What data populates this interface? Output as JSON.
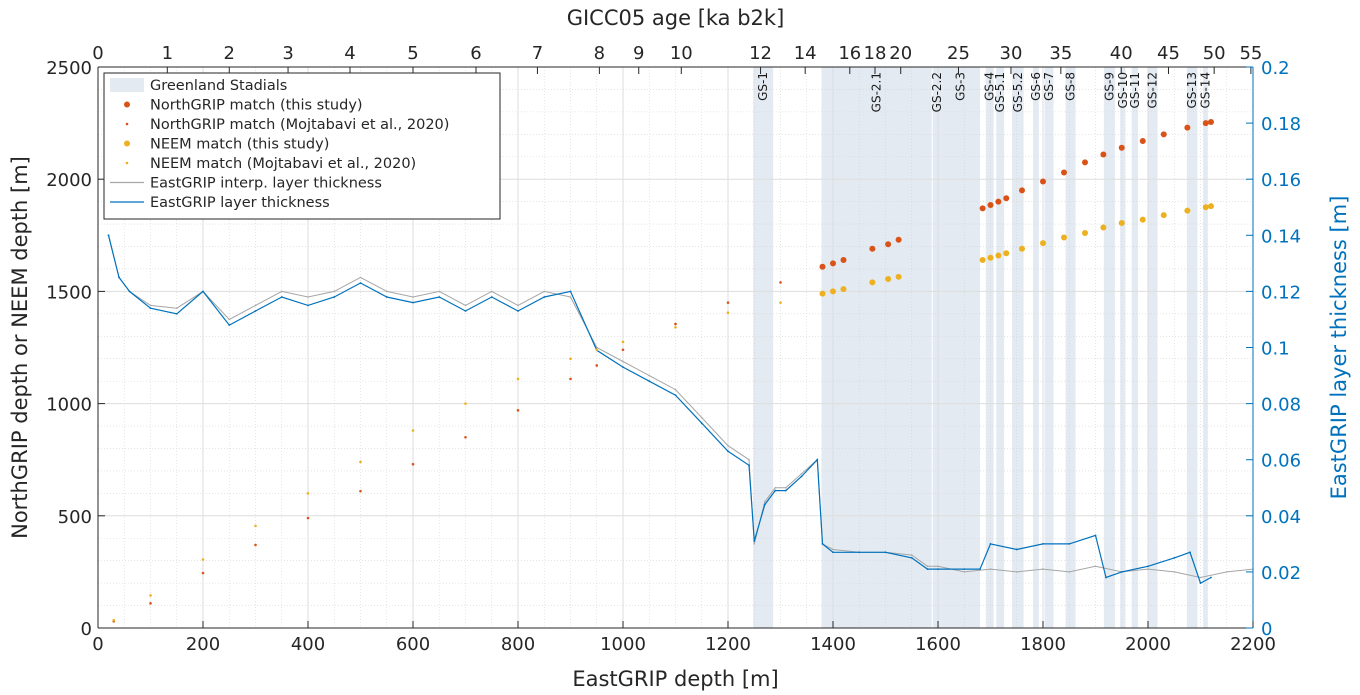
{
  "chart_data": {
    "type": "scatter",
    "top_axis": {
      "label": "GICC05 age [ka b2k]",
      "ticks": [
        {
          "depth": 0,
          "label": "0"
        },
        {
          "depth": 132,
          "label": "1"
        },
        {
          "depth": 250,
          "label": "2"
        },
        {
          "depth": 362,
          "label": "3"
        },
        {
          "depth": 480,
          "label": "4"
        },
        {
          "depth": 600,
          "label": "5"
        },
        {
          "depth": 720,
          "label": "6"
        },
        {
          "depth": 837,
          "label": "7"
        },
        {
          "depth": 955,
          "label": "8"
        },
        {
          "depth": 1030,
          "label": "9"
        },
        {
          "depth": 1111,
          "label": "10"
        },
        {
          "depth": 1262,
          "label": "12"
        },
        {
          "depth": 1347,
          "label": "14"
        },
        {
          "depth": 1432,
          "label": "16"
        },
        {
          "depth": 1480,
          "label": "18"
        },
        {
          "depth": 1529,
          "label": "20"
        },
        {
          "depth": 1639,
          "label": "25"
        },
        {
          "depth": 1739,
          "label": "30"
        },
        {
          "depth": 1834,
          "label": "35"
        },
        {
          "depth": 1949,
          "label": "40"
        },
        {
          "depth": 2039,
          "label": "45"
        },
        {
          "depth": 2126,
          "label": "50"
        },
        {
          "depth": 2196,
          "label": "55"
        }
      ]
    },
    "x_axis": {
      "label": "EastGRIP depth [m]",
      "range": [
        0,
        2200
      ],
      "ticks": [
        0,
        200,
        400,
        600,
        800,
        1000,
        1200,
        1400,
        1600,
        1800,
        2000,
        2200
      ]
    },
    "y_axis_left": {
      "label": "NorthGRIP depth or NEEM depth [m]",
      "range": [
        0,
        2500
      ],
      "ticks": [
        0,
        500,
        1000,
        1500,
        2000,
        2500
      ]
    },
    "y_axis_right": {
      "label": "EastGRIP layer thickness [m]",
      "range": [
        0,
        0.2
      ],
      "ticks": [
        "0",
        "0.02",
        "0.04",
        "0.06",
        "0.08",
        "0.1",
        "0.12",
        "0.14",
        "0.16",
        "0.18",
        "0.2"
      ],
      "color": "#0072BD"
    },
    "grid": true,
    "legend": {
      "position": "top-left",
      "entries": [
        "Greenland Stadials",
        "NorthGRIP match (this study)",
        "NorthGRIP match (Mojtabavi et al., 2020)",
        "NEEM match (this study)",
        "NEEM match (Mojtabavi et al., 2020)",
        "EastGRIP interp. layer thickness",
        "EastGRIP layer thickness"
      ]
    },
    "stadials": [
      {
        "label": "GS-1",
        "start": 1248,
        "end": 1286
      },
      {
        "label": "GS-2.1",
        "start": 1378,
        "end": 1588
      },
      {
        "label": "GS-2.2",
        "start": 1590,
        "end": 1606
      },
      {
        "label": "GS-3",
        "start": 1606,
        "end": 1680
      },
      {
        "label": "GS-4",
        "start": 1691,
        "end": 1706
      },
      {
        "label": "GS-5.1",
        "start": 1711,
        "end": 1726
      },
      {
        "label": "GS-5.2",
        "start": 1741,
        "end": 1763
      },
      {
        "label": "GS-6",
        "start": 1781,
        "end": 1792
      },
      {
        "label": "GS-7",
        "start": 1803,
        "end": 1820
      },
      {
        "label": "GS-8",
        "start": 1843,
        "end": 1862
      },
      {
        "label": "GS-9",
        "start": 1916,
        "end": 1937
      },
      {
        "label": "GS-10",
        "start": 1947,
        "end": 1957
      },
      {
        "label": "GS-11",
        "start": 1969,
        "end": 1981
      },
      {
        "label": "GS-12",
        "start": 2000,
        "end": 2018
      },
      {
        "label": "GS-13",
        "start": 2074,
        "end": 2094
      },
      {
        "label": "GS-14",
        "start": 2105,
        "end": 2114
      }
    ],
    "colors": {
      "stadial": "#E3EAF1",
      "northgrip": "#D95319",
      "neem": "#EDB120",
      "interp_thickness": "#A6A6A6",
      "thickness": "#0072BD"
    },
    "series": [
      {
        "name": "NorthGRIP match (this study)",
        "x": [
          1380,
          1400,
          1420,
          1475,
          1505,
          1525,
          1685,
          1700,
          1715,
          1730,
          1760,
          1800,
          1840,
          1880,
          1915,
          1950,
          1990,
          2030,
          2075,
          2110,
          2120
        ],
        "y": [
          1610,
          1625,
          1640,
          1690,
          1710,
          1730,
          1870,
          1885,
          1900,
          1915,
          1950,
          1990,
          2030,
          2075,
          2110,
          2140,
          2170,
          2200,
          2230,
          2250,
          2255
        ]
      },
      {
        "name": "NorthGRIP match (Mojtabavi et al., 2020)",
        "x": [
          30,
          100,
          200,
          300,
          400,
          500,
          600,
          700,
          800,
          900,
          950,
          1000,
          1100,
          1200,
          1300,
          1380
        ],
        "y": [
          30,
          110,
          245,
          370,
          490,
          610,
          730,
          850,
          970,
          1110,
          1170,
          1240,
          1355,
          1450,
          1540,
          1610
        ]
      },
      {
        "name": "NEEM match (this study)",
        "x": [
          1380,
          1400,
          1420,
          1475,
          1505,
          1525,
          1685,
          1700,
          1715,
          1730,
          1760,
          1800,
          1840,
          1880,
          1915,
          1950,
          1990,
          2030,
          2075,
          2110,
          2120
        ],
        "y": [
          1490,
          1500,
          1510,
          1540,
          1555,
          1565,
          1640,
          1650,
          1660,
          1670,
          1690,
          1715,
          1740,
          1760,
          1785,
          1805,
          1820,
          1840,
          1860,
          1875,
          1880
        ]
      },
      {
        "name": "NEEM match (Mojtabavi et al., 2020)",
        "x": [
          30,
          100,
          200,
          300,
          400,
          500,
          600,
          700,
          800,
          900,
          950,
          1000,
          1100,
          1200,
          1300,
          1380
        ],
        "y": [
          35,
          145,
          305,
          455,
          600,
          740,
          880,
          1000,
          1110,
          1200,
          1240,
          1275,
          1340,
          1405,
          1450,
          1490
        ]
      },
      {
        "name": "EastGRIP interp. layer thickness",
        "x": [
          20,
          40,
          60,
          100,
          150,
          200,
          250,
          300,
          350,
          400,
          450,
          500,
          550,
          600,
          650,
          700,
          750,
          800,
          850,
          900,
          950,
          1000,
          1050,
          1100,
          1150,
          1200,
          1240,
          1250,
          1270,
          1290,
          1310,
          1340,
          1370,
          1380,
          1400,
          1450,
          1500,
          1550,
          1580,
          1600,
          1650,
          1700,
          1750,
          1800,
          1850,
          1900,
          1950,
          2000,
          2050,
          2100,
          2150,
          2200
        ],
        "y": [
          0.14,
          0.125,
          0.12,
          0.115,
          0.114,
          0.12,
          0.11,
          0.115,
          0.12,
          0.118,
          0.12,
          0.125,
          0.12,
          0.118,
          0.12,
          0.115,
          0.12,
          0.115,
          0.12,
          0.118,
          0.1,
          0.095,
          0.09,
          0.085,
          0.075,
          0.065,
          0.06,
          0.03,
          0.045,
          0.05,
          0.05,
          0.055,
          0.06,
          0.03,
          0.028,
          0.027,
          0.027,
          0.026,
          0.022,
          0.022,
          0.02,
          0.021,
          0.02,
          0.021,
          0.02,
          0.022,
          0.02,
          0.021,
          0.02,
          0.018,
          0.02,
          0.021
        ]
      },
      {
        "name": "EastGRIP layer thickness",
        "x": [
          20,
          40,
          60,
          100,
          150,
          200,
          250,
          300,
          350,
          400,
          450,
          500,
          550,
          600,
          650,
          700,
          750,
          800,
          850,
          900,
          950,
          1000,
          1050,
          1100,
          1150,
          1200,
          1240,
          1250,
          1270,
          1290,
          1310,
          1340,
          1370,
          1380,
          1400,
          1450,
          1500,
          1550,
          1580,
          1600,
          1650,
          1680,
          1700,
          1750,
          1800,
          1850,
          1900,
          1920,
          1950,
          2000,
          2050,
          2080,
          2100,
          2120
        ],
        "y": [
          0.14,
          0.125,
          0.12,
          0.114,
          0.112,
          0.12,
          0.108,
          0.113,
          0.118,
          0.115,
          0.118,
          0.123,
          0.118,
          0.116,
          0.118,
          0.113,
          0.118,
          0.113,
          0.118,
          0.12,
          0.099,
          0.093,
          0.088,
          0.083,
          0.073,
          0.063,
          0.058,
          0.031,
          0.044,
          0.049,
          0.049,
          0.054,
          0.06,
          0.03,
          0.027,
          0.027,
          0.027,
          0.025,
          0.021,
          0.021,
          0.021,
          0.021,
          0.03,
          0.028,
          0.03,
          0.03,
          0.033,
          0.018,
          0.02,
          0.022,
          0.025,
          0.027,
          0.016,
          0.018
        ]
      }
    ]
  }
}
